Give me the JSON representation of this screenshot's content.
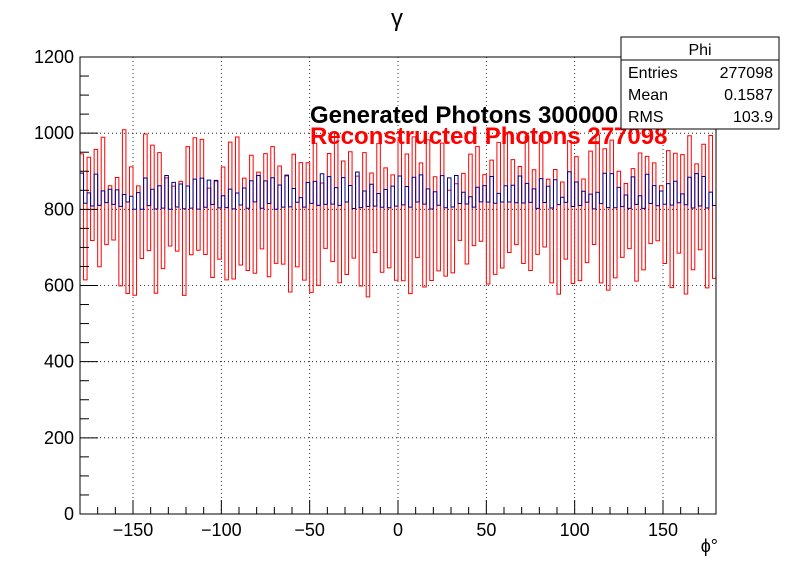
{
  "chart_data": {
    "type": "histogram",
    "title": "γ",
    "xlabel": "ϕ°",
    "ylabel": "",
    "xlim": [
      -180,
      180
    ],
    "ylim": [
      0,
      1200
    ],
    "x_ticks": [
      -150,
      -100,
      -50,
      0,
      50,
      100,
      150
    ],
    "y_ticks": [
      0,
      200,
      400,
      600,
      800,
      1000,
      1200
    ],
    "grid": true,
    "bin_width": 2,
    "series": [
      {
        "name": "Reconstructed Photons 277098",
        "color": "#ff0000",
        "mean_level": 800,
        "low_range": [
          570,
          720
        ],
        "high_range": [
          850,
          1010
        ]
      },
      {
        "name": "Generated Photons 300000",
        "color": "#00008b",
        "mean_level": 830,
        "low_range": [
          800,
          820
        ],
        "high_range": [
          830,
          900
        ]
      }
    ],
    "annotations": [
      {
        "text": "Generated Photons 300000",
        "color": "#000000"
      },
      {
        "text": "Reconstructed Photons 277098",
        "color": "#ff0000"
      }
    ]
  },
  "stats": {
    "title": "Phi",
    "rows": [
      {
        "label": "Entries",
        "value": "277098"
      },
      {
        "label": "Mean",
        "value": "0.1587"
      },
      {
        "label": "RMS",
        "value": "103.9"
      }
    ]
  }
}
